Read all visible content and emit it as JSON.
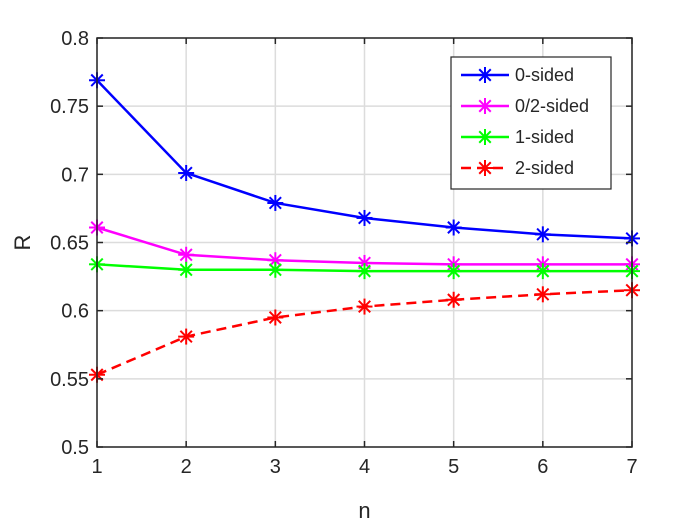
{
  "chart_data": {
    "type": "line",
    "title": "",
    "xlabel": "n",
    "ylabel": "R",
    "x": [
      1,
      2,
      3,
      4,
      5,
      6,
      7
    ],
    "xlim": [
      1,
      7
    ],
    "ylim": [
      0.5,
      0.8
    ],
    "xticks": [
      1,
      2,
      3,
      4,
      5,
      6,
      7
    ],
    "yticks": [
      0.5,
      0.55,
      0.6,
      0.65,
      0.7,
      0.75,
      0.8
    ],
    "ytick_labels": [
      "0.5",
      "0.55",
      "0.6",
      "0.65",
      "0.7",
      "0.75",
      "0.8"
    ],
    "grid": true,
    "legend_position": "top-right",
    "series": [
      {
        "name": "0-sided",
        "color": "#0000ff",
        "dash": "solid",
        "marker": "asterisk",
        "values": [
          0.769,
          0.701,
          0.679,
          0.668,
          0.661,
          0.656,
          0.653
        ]
      },
      {
        "name": "0/2-sided",
        "color": "#ff00ff",
        "dash": "solid",
        "marker": "asterisk",
        "values": [
          0.661,
          0.641,
          0.637,
          0.635,
          0.634,
          0.634,
          0.634
        ]
      },
      {
        "name": "1-sided",
        "color": "#00ff00",
        "dash": "solid",
        "marker": "asterisk",
        "values": [
          0.634,
          0.63,
          0.63,
          0.629,
          0.629,
          0.629,
          0.629
        ]
      },
      {
        "name": "2-sided",
        "color": "#ff0000",
        "dash": "dashed",
        "marker": "asterisk",
        "values": [
          0.553,
          0.581,
          0.595,
          0.603,
          0.608,
          0.612,
          0.615
        ]
      }
    ]
  }
}
